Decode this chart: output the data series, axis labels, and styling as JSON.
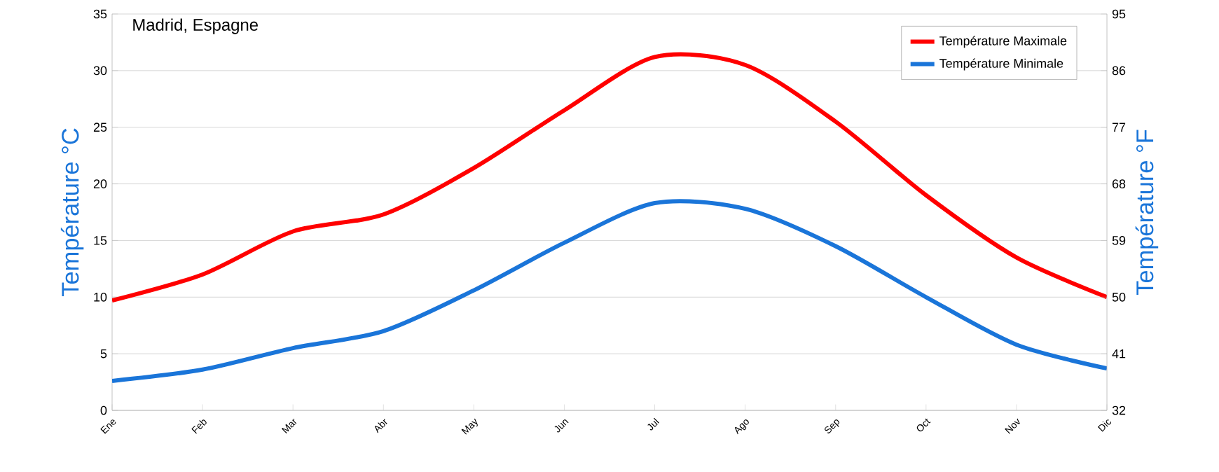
{
  "chart_data": {
    "type": "line",
    "title": "Madrid, Espagne",
    "ylabel": "Température °C",
    "y2label": "Température °F",
    "categories": [
      "Ene",
      "Feb",
      "Mar",
      "Abr",
      "May",
      "Jun",
      "Jul",
      "Ago",
      "Sep",
      "Oct",
      "Nov",
      "Dic"
    ],
    "series": [
      {
        "name": "Température Maximale",
        "color": "#ff0000",
        "values": [
          9.7,
          12.0,
          15.8,
          17.3,
          21.4,
          26.5,
          31.2,
          30.5,
          25.5,
          19.0,
          13.5,
          10.0
        ]
      },
      {
        "name": "Température Minimale",
        "color": "#1a75d9",
        "values": [
          2.6,
          3.6,
          5.5,
          7.0,
          10.6,
          14.8,
          18.3,
          17.8,
          14.5,
          10.0,
          5.8,
          3.7
        ]
      }
    ],
    "ylim": [
      0,
      35
    ],
    "yticks": [
      0,
      5,
      10,
      15,
      20,
      25,
      30,
      35
    ],
    "y2lim": [
      32,
      95
    ],
    "y2ticks": [
      32,
      41,
      50,
      59,
      68,
      77,
      86,
      95
    ],
    "grid": "y",
    "legend": "top right"
  }
}
